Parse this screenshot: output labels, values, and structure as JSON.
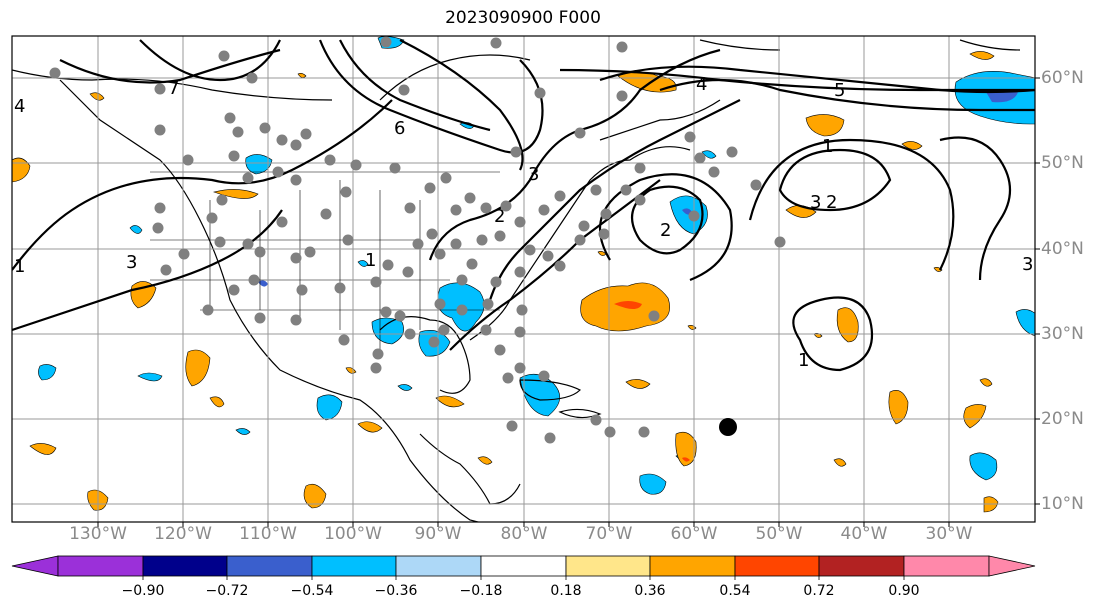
{
  "title": "2023090900 F000",
  "map": {
    "type": "weather-forecast-map",
    "land_outline_color": "#000000",
    "grid_color": "#999999",
    "lon_labels": [
      "130°W",
      "120°W",
      "110°W",
      "100°W",
      "90°W",
      "80°W",
      "70°W",
      "60°W",
      "50°W",
      "40°W",
      "30°W"
    ],
    "lat_labels": [
      "60°N",
      "50°N",
      "40°N",
      "30°N",
      "20°N",
      "10°N"
    ],
    "contour_labels": [
      "1",
      "1",
      "1",
      "1",
      "2",
      "2",
      "2",
      "3",
      "3",
      "3",
      "3",
      "4",
      "4",
      "5",
      "6",
      "7"
    ],
    "observation_point_color": "#808080",
    "storm_marker_color": "#000000"
  },
  "colorbar": {
    "ticks": [
      "−0.90",
      "−0.72",
      "−0.54",
      "−0.36",
      "−0.18",
      "0.18",
      "0.36",
      "0.54",
      "0.72",
      "0.90"
    ],
    "colors": [
      "#9b30d9",
      "#00008b",
      "#3a5fcd",
      "#00bfff",
      "#add8f7",
      "#ffffff",
      "#ffe68a",
      "#ffa500",
      "#ff4500",
      "#b22222",
      "#ff88aa"
    ]
  }
}
